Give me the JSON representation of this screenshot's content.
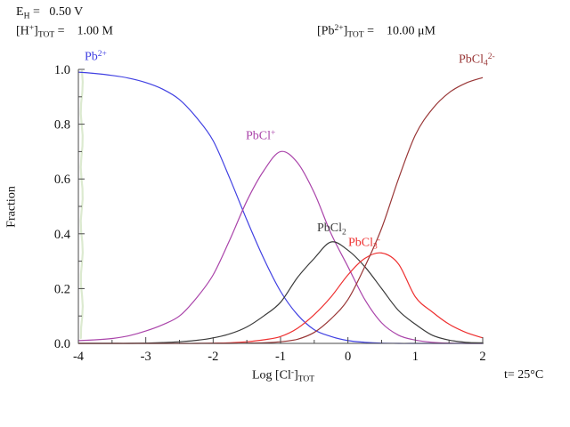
{
  "header": {
    "eh": "E_{H} =   0.50 V",
    "h_tot": "[H^{+}]_{TOT} =    1.00 M",
    "pb_tot": "[Pb^{2+}]_{TOT} =    10.00 μM"
  },
  "footer": {
    "temperature": "t= 25°C"
  },
  "chart_data": {
    "type": "line",
    "title": "",
    "xlabel": "Log [Cl^{-}]_{TOT}",
    "ylabel": "Fraction",
    "xlim": [
      -4,
      2
    ],
    "ylim": [
      0,
      1
    ],
    "grid": false,
    "legend_position": "inline-curve-labels",
    "x_tick_labels": [
      "-4",
      "-3",
      "-2",
      "-1",
      "0",
      "1",
      "2"
    ],
    "x_major_ticks": [
      -4,
      -3,
      -2,
      -1,
      0,
      1,
      2
    ],
    "x_minor_step": 0.5,
    "y_tick_labels": [
      "0.0",
      "0.2",
      "0.4",
      "0.6",
      "0.8",
      "1.0"
    ],
    "y_major_ticks": [
      0,
      0.2,
      0.4,
      0.6,
      0.8,
      1.0
    ],
    "y_minor_step": 0.1,
    "axis_color": "#4a4a4a",
    "x": [
      -4,
      -3.75,
      -3.5,
      -3.25,
      -3,
      -2.75,
      -2.5,
      -2.25,
      -2,
      -1.75,
      -1.5,
      -1.25,
      -1,
      -0.75,
      -0.5,
      -0.25,
      0,
      0.25,
      0.5,
      0.75,
      1,
      1.25,
      1.5,
      1.75,
      2
    ],
    "series": [
      {
        "name": "Pb2+",
        "label": "Pb^{2+}",
        "color": "#4040e2",
        "values": [
          0.99,
          0.985,
          0.978,
          0.968,
          0.952,
          0.928,
          0.89,
          0.825,
          0.74,
          0.6,
          0.45,
          0.31,
          0.19,
          0.105,
          0.05,
          0.025,
          0.01,
          0.004,
          0.001,
          0,
          0,
          0,
          0,
          0,
          0
        ]
      },
      {
        "name": "PbCl+",
        "label": "PbCl^{+}",
        "color": "#aa44aa",
        "values": [
          0.01,
          0.013,
          0.018,
          0.028,
          0.045,
          0.068,
          0.1,
          0.165,
          0.25,
          0.38,
          0.52,
          0.63,
          0.7,
          0.66,
          0.55,
          0.4,
          0.28,
          0.16,
          0.075,
          0.03,
          0.012,
          0.004,
          0.001,
          0,
          0
        ]
      },
      {
        "name": "PbCl2",
        "label": "PbCl_{2}",
        "color": "#3a3a3a",
        "values": [
          0,
          0,
          0,
          0,
          0.001,
          0.003,
          0.006,
          0.011,
          0.02,
          0.035,
          0.06,
          0.1,
          0.15,
          0.24,
          0.31,
          0.37,
          0.34,
          0.28,
          0.2,
          0.12,
          0.07,
          0.03,
          0.012,
          0.004,
          0.002
        ]
      },
      {
        "name": "PbCl3-",
        "label": "PbCl_{3}^{-}",
        "color": "#ee3030",
        "values": [
          0,
          0,
          0,
          0,
          0,
          0,
          0,
          0,
          0.001,
          0.002,
          0.006,
          0.013,
          0.025,
          0.055,
          0.105,
          0.17,
          0.25,
          0.31,
          0.33,
          0.29,
          0.17,
          0.115,
          0.07,
          0.04,
          0.02
        ]
      },
      {
        "name": "PbCl4 2-",
        "label": "PbCl_{4}^{2-}",
        "color": "#993636",
        "values": [
          0,
          0,
          0,
          0,
          0,
          0,
          0,
          0,
          0,
          0,
          0.001,
          0.002,
          0.006,
          0.015,
          0.04,
          0.09,
          0.16,
          0.28,
          0.42,
          0.6,
          0.76,
          0.855,
          0.915,
          0.95,
          0.97
        ]
      }
    ],
    "annotations": {
      "vertical_trace": {
        "x": -3.95,
        "color": "#dcead0"
      },
      "key_features": "Pb2+/PbCl+ cross at x=-1.6 (0.49); PbCl+ peak 0.70 at x=-1.0; PbCl2 peak 0.37 at x=-0.25; PbCl3- peak 0.33 at x=0.5; PbCl4 2- reaches 0.97 at x=2"
    }
  }
}
